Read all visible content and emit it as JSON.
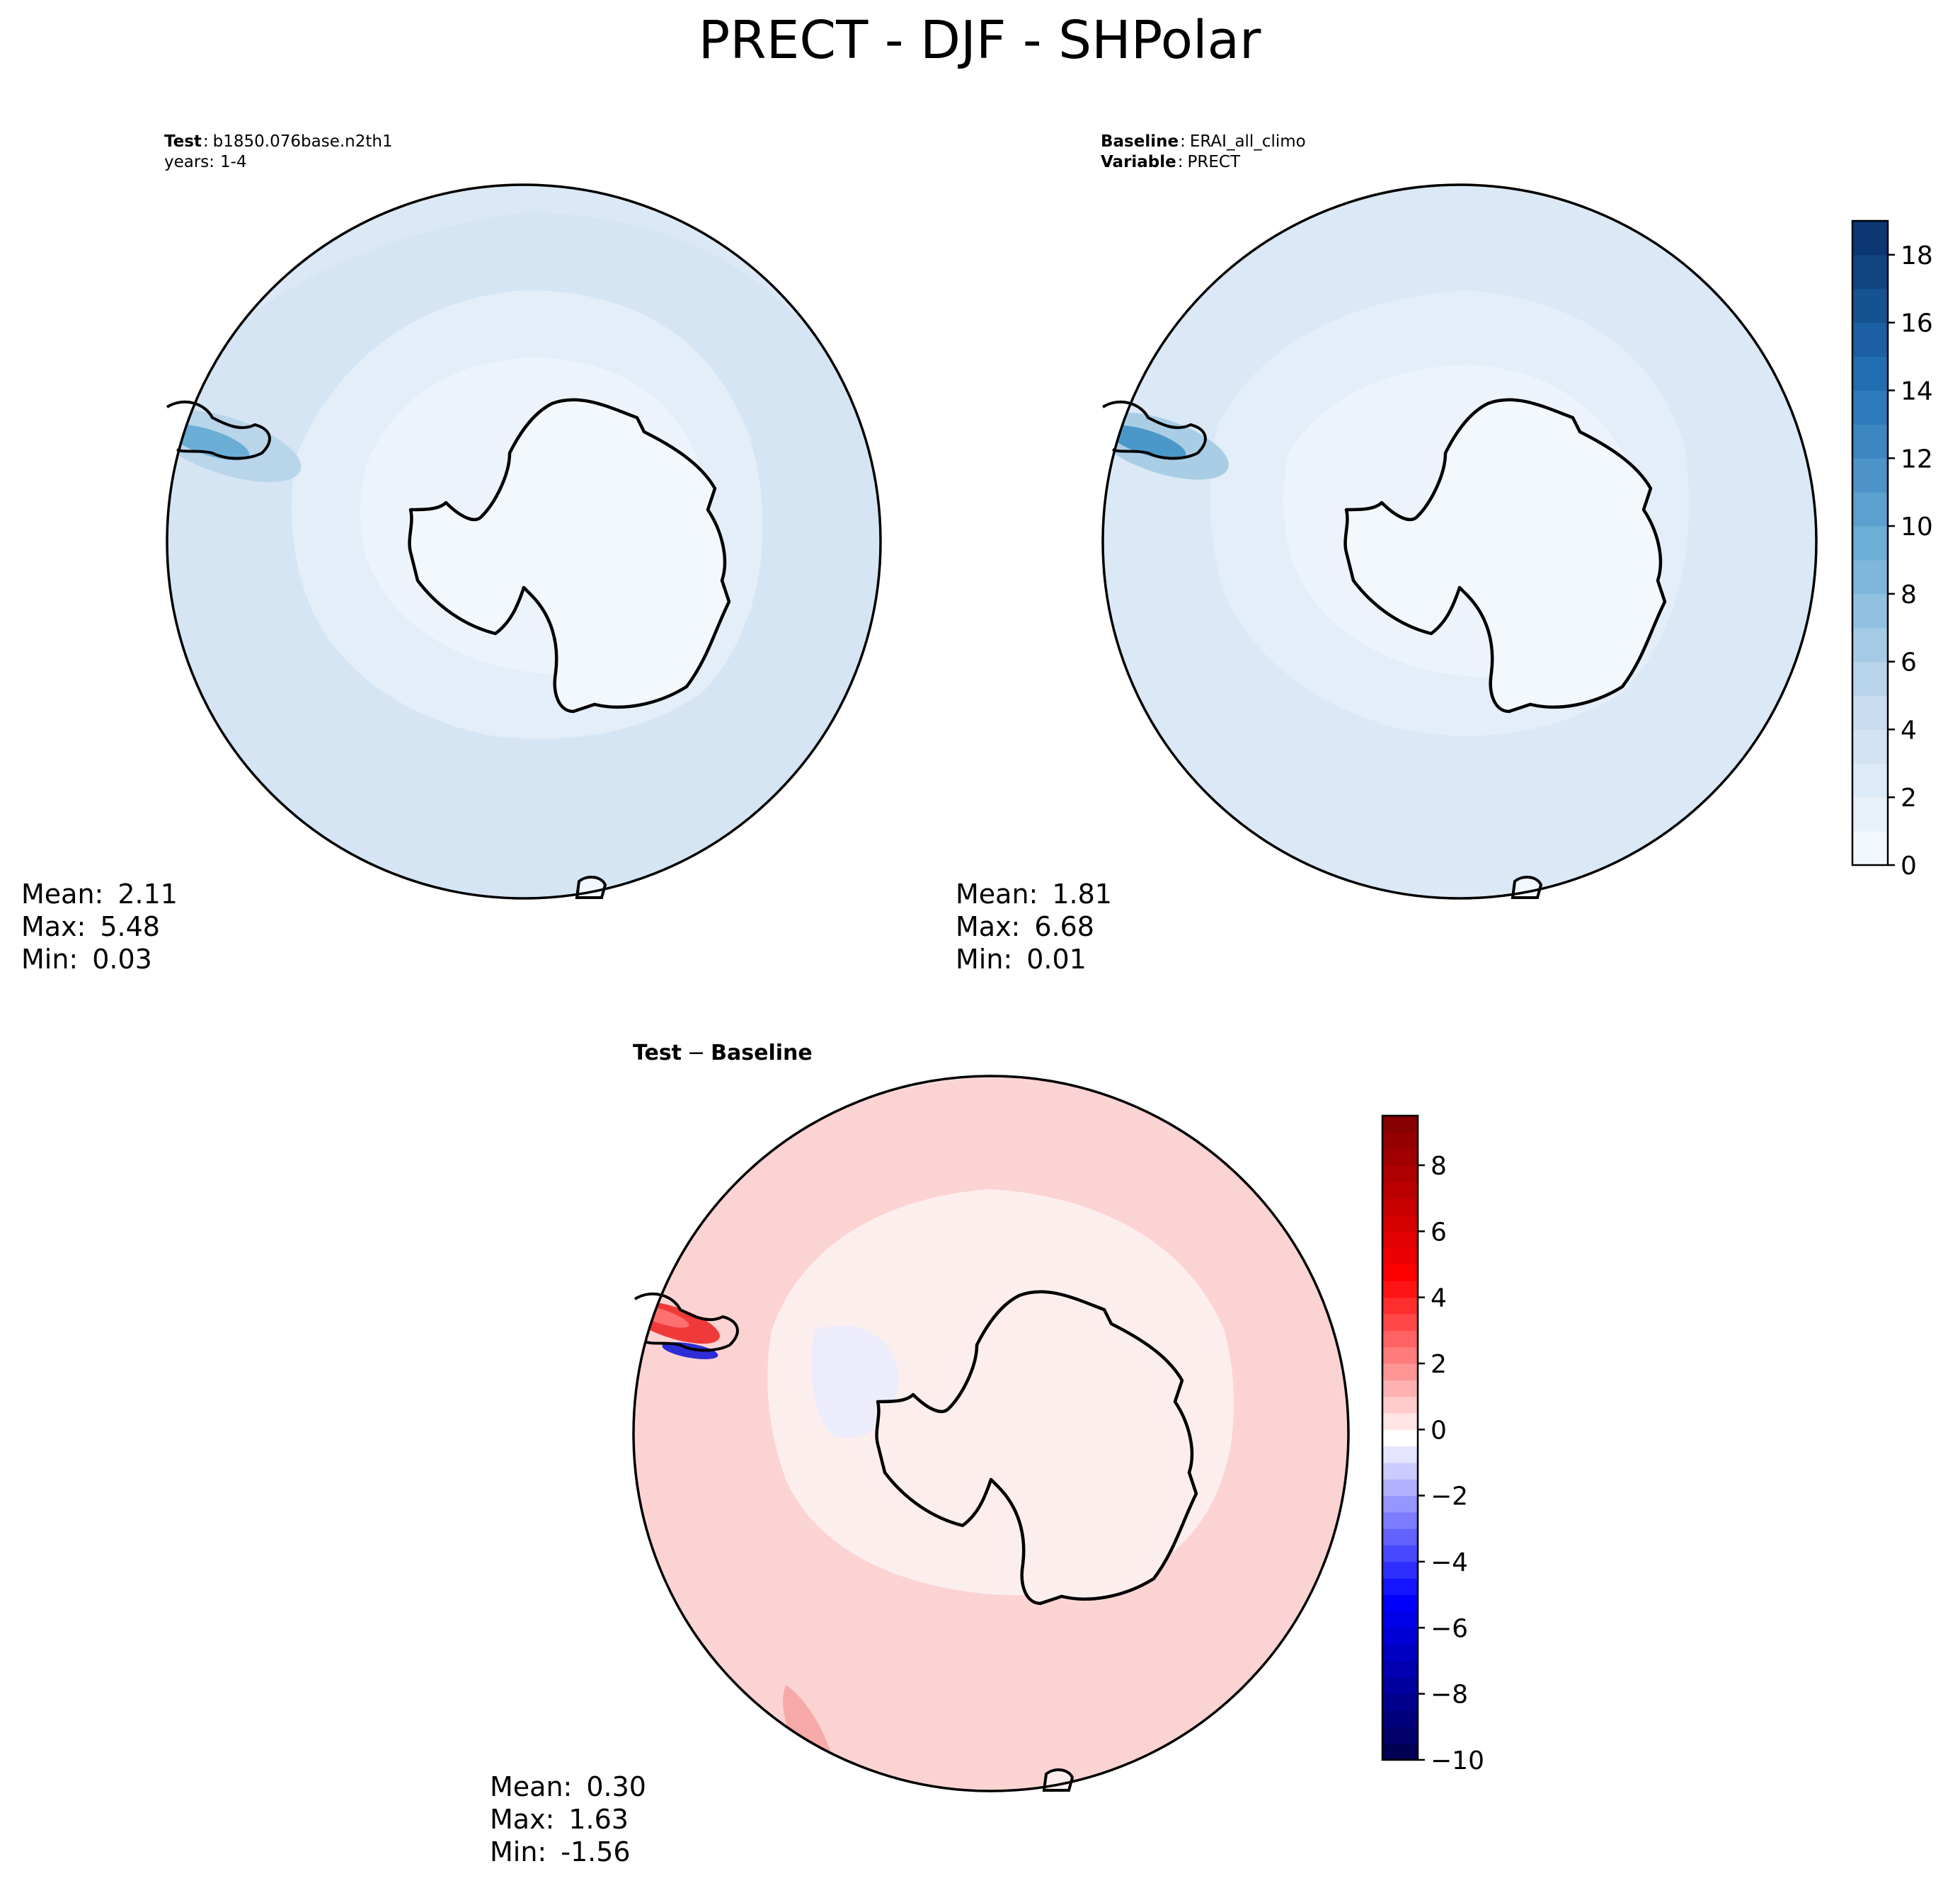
{
  "figure": {
    "title": "PRECT - DJF - SHPolar"
  },
  "chart_data": [
    {
      "type": "heatmap",
      "panel": "test",
      "projection": "south-polar-stereographic",
      "header": {
        "line1_label": "Test",
        "line1_value": "b1850.076base.n2th1",
        "line2_label": "years",
        "line2_value": "1-4"
      },
      "stats": {
        "mean": "2.11",
        "max": "5.48",
        "min": "0.03"
      },
      "stat_labels": {
        "mean": "Mean:",
        "max": "Max:",
        "min": "Min:"
      },
      "colormap": "Blues",
      "shared_colorbar": "baseline"
    },
    {
      "type": "heatmap",
      "panel": "baseline",
      "projection": "south-polar-stereographic",
      "header": {
        "line1_label": "Baseline",
        "line1_value": "ERAI_all_climo",
        "line2_label": "Variable",
        "line2_value": "PRECT"
      },
      "stats": {
        "mean": "1.81",
        "max": "6.68",
        "min": "0.01"
      },
      "stat_labels": {
        "mean": "Mean:",
        "max": "Max:",
        "min": "Min:"
      },
      "colorbar": {
        "colormap": "Blues",
        "range": [
          0,
          19
        ],
        "levels": [
          0,
          1,
          2,
          3,
          4,
          5,
          6,
          7,
          8,
          9,
          10,
          11,
          12,
          13,
          14,
          15,
          16,
          17,
          18,
          19
        ],
        "ticks": [
          "0",
          "2",
          "4",
          "6",
          "8",
          "10",
          "12",
          "14",
          "16",
          "18"
        ],
        "tick_values": [
          0,
          2,
          4,
          6,
          8,
          10,
          12,
          14,
          16,
          18
        ]
      }
    },
    {
      "type": "heatmap",
      "panel": "difference",
      "projection": "south-polar-stereographic",
      "header": {
        "title_a": "Test",
        "title_sep": "−",
        "title_b": "Baseline"
      },
      "stats": {
        "mean": "0.30",
        "max": "1.63",
        "min": "-1.56"
      },
      "stat_labels": {
        "mean": "Mean:",
        "max": "Max:",
        "min": "Min:"
      },
      "colorbar": {
        "colormap": "seismic",
        "range": [
          -10,
          9.5
        ],
        "levels": [
          -10,
          -9.5,
          -9,
          -8.5,
          -8,
          -7.5,
          -7,
          -6.5,
          -6,
          -5.5,
          -5,
          -4.5,
          -4,
          -3.5,
          -3,
          -2.5,
          -2,
          -1.5,
          -1,
          -0.5,
          0,
          0.5,
          1,
          1.5,
          2,
          2.5,
          3,
          3.5,
          4,
          4.5,
          5,
          5.5,
          6,
          6.5,
          7,
          7.5,
          8,
          8.5,
          9,
          9.5
        ],
        "ticks": [
          "−10",
          "−8",
          "−6",
          "−4",
          "−2",
          "0",
          "2",
          "4",
          "6",
          "8"
        ],
        "tick_values": [
          -10,
          -8,
          -6,
          -4,
          -2,
          0,
          2,
          4,
          6,
          8
        ]
      }
    }
  ]
}
